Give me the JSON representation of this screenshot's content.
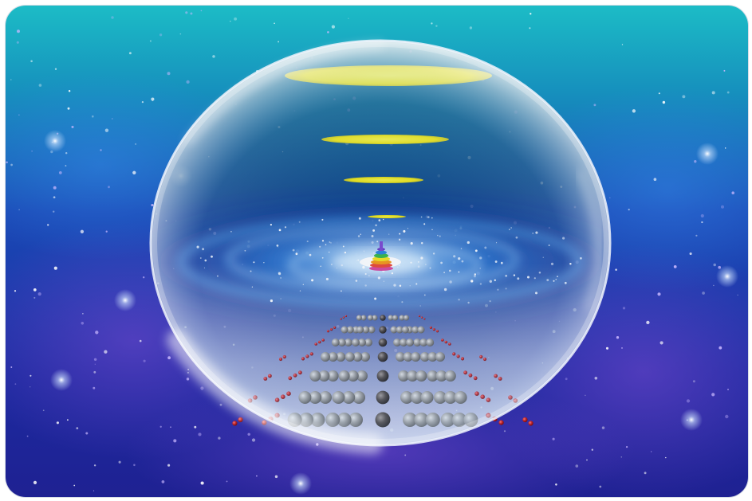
{
  "image": {
    "alt": "",
    "colors": {
      "sky_top": "#1ab8c4",
      "sky_mid": "#1b3fb0",
      "sky_bottom": "#1a1e8a",
      "nebula_violet": "#5a2fb8",
      "galaxy_core": "#ffffff",
      "galaxy_arm": "#3a9be8",
      "disc_yellow": "#f6ee12",
      "bubble_rim": "#dfe8f5",
      "sphere_gray": "#9a9a9a",
      "sphere_dark": "#3e3a38",
      "particle_red": "#b41e22"
    },
    "icons": [
      "bubble-sphere",
      "spiral-galaxy",
      "yellow-disc",
      "rainbow-stack",
      "atom-lattice"
    ]
  }
}
